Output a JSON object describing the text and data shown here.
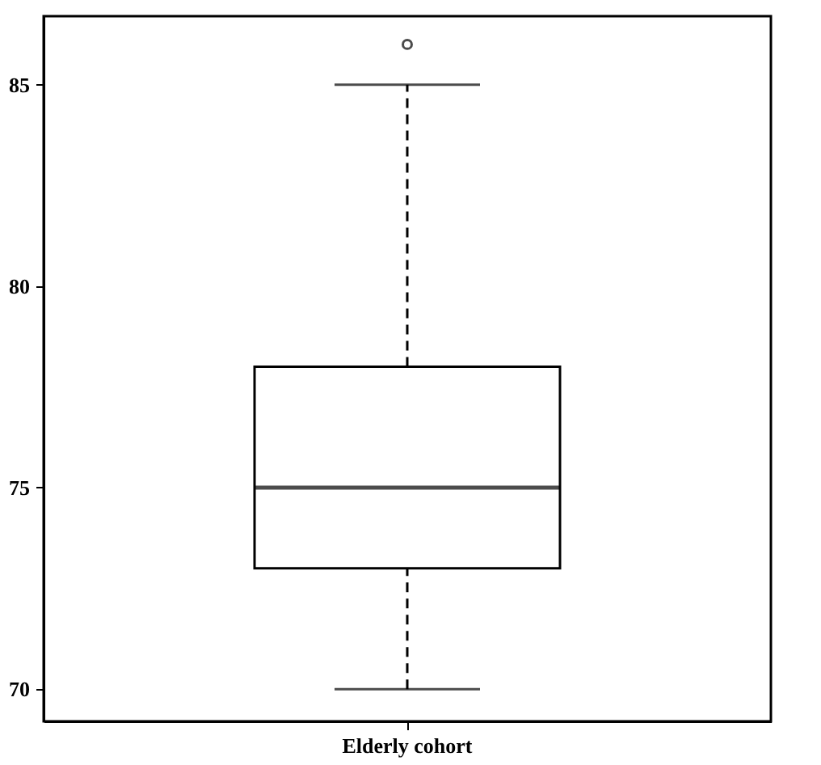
{
  "chart_data": {
    "type": "box",
    "categories": [
      "Elderly cohort"
    ],
    "boxes": [
      {
        "low": 70,
        "q1": 73,
        "median": 75,
        "q3": 78,
        "high": 85,
        "outliers": [
          86
        ]
      }
    ],
    "ylim": [
      69.2,
      86.7
    ],
    "yticks": [
      70,
      75,
      80,
      85
    ],
    "grid": false,
    "line_style": "dashed"
  }
}
